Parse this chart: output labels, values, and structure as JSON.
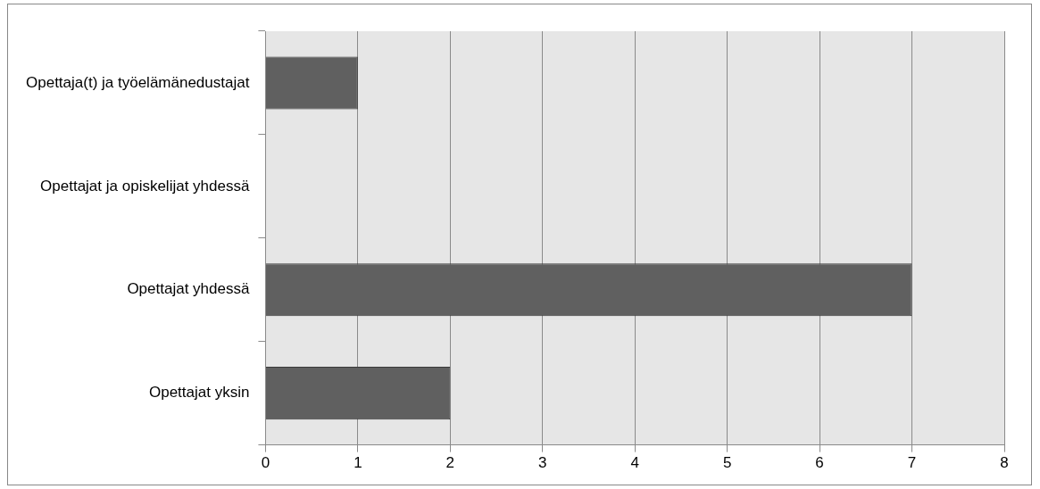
{
  "chart_data": {
    "type": "bar",
    "orientation": "horizontal",
    "categories": [
      "Opettaja(t) ja työelämänedustajat",
      "Opettajat ja opiskelijat yhdessä",
      "Opettajat yhdessä",
      "Opettajat yksin"
    ],
    "values": [
      1,
      0,
      7,
      2
    ],
    "color": "#606060",
    "xlim": [
      0,
      8
    ],
    "xticks": [
      0,
      1,
      2,
      3,
      4,
      5,
      6,
      7,
      8
    ],
    "grid": "x",
    "legend": false
  }
}
